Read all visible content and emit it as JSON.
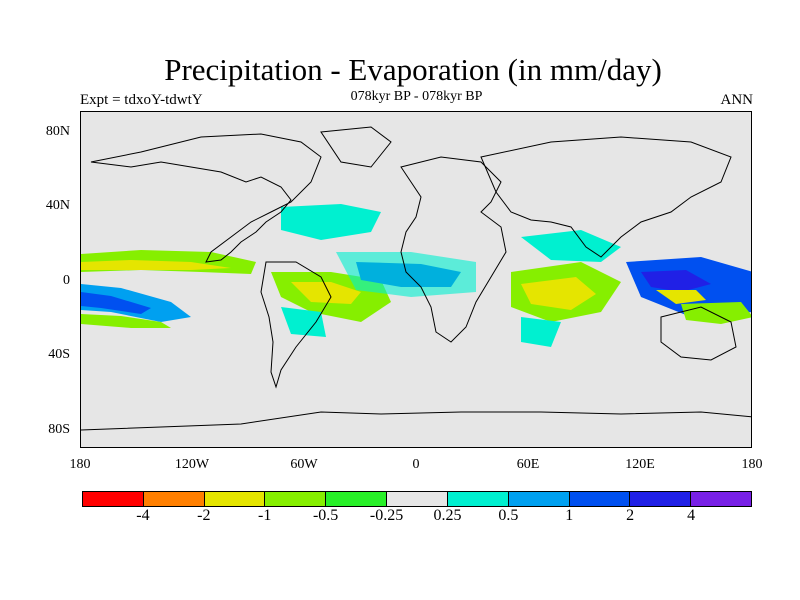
{
  "title": "Precipitation - Evaporation (in mm/day)",
  "subtitle": "078kyr BP - 078kyr BP",
  "left_label": "Expt = tdxoY-tdwtY",
  "right_label": "ANN",
  "lat_labels": [
    "80N",
    "40N",
    "0",
    "40S",
    "80S"
  ],
  "lon_labels": [
    "180",
    "120W",
    "60W",
    "0",
    "60E",
    "120E",
    "180"
  ],
  "colorbar": {
    "colors": [
      "#ff0000",
      "#ff7f00",
      "#e5e500",
      "#86ef00",
      "#28f028",
      "#e6e6e6",
      "#00f0d0",
      "#00a0f0",
      "#0050f0",
      "#2020e6",
      "#7820e6"
    ],
    "labels": [
      "-4",
      "-2",
      "-1",
      "-0.5",
      "-0.25",
      "0.25",
      "0.5",
      "1",
      "2",
      "4"
    ]
  }
}
